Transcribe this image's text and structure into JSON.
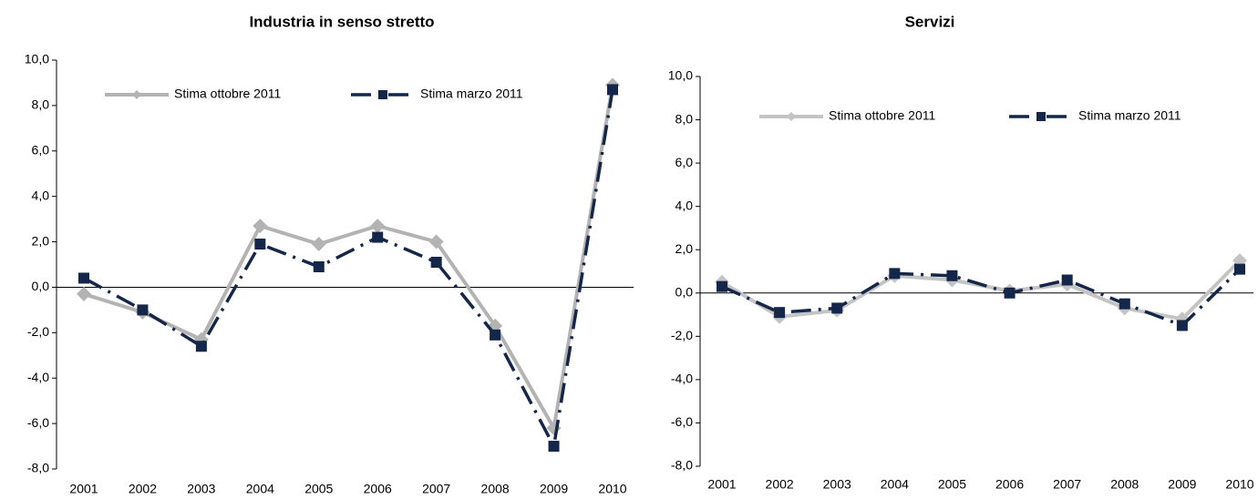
{
  "chart_data": [
    {
      "type": "line",
      "title": "Industria in senso stretto",
      "categories": [
        "2001",
        "2002",
        "2003",
        "2004",
        "2005",
        "2006",
        "2007",
        "2008",
        "2009",
        "2010"
      ],
      "series": [
        {
          "name": "Stima ottobre 2011",
          "color": "#b3b3b3",
          "values": [
            -0.3,
            -1.1,
            -2.3,
            2.7,
            1.9,
            2.7,
            2.0,
            -1.7,
            -6.2,
            8.9
          ]
        },
        {
          "name": "Stima marzo 2011",
          "color": "#14264a",
          "values": [
            0.4,
            -1.0,
            -2.6,
            1.9,
            0.9,
            2.2,
            1.1,
            -2.1,
            -7.0,
            8.7
          ]
        }
      ],
      "ylim": [
        -8,
        10
      ],
      "yticks": [
        {
          "value": -8,
          "label": "-8,0"
        },
        {
          "value": -6,
          "label": "-6,0"
        },
        {
          "value": -4,
          "label": "-4,0"
        },
        {
          "value": -2,
          "label": "-2,0"
        },
        {
          "value": 0,
          "label": "0,0"
        },
        {
          "value": 2,
          "label": "2,0"
        },
        {
          "value": 4,
          "label": "4,0"
        },
        {
          "value": 6,
          "label": "6,0"
        },
        {
          "value": 8,
          "label": "8,0"
        },
        {
          "value": 10,
          "label": "10,0"
        }
      ]
    },
    {
      "type": "line",
      "title": "Servizi",
      "categories": [
        "2001",
        "2002",
        "2003",
        "2004",
        "2005",
        "2006",
        "2007",
        "2008",
        "2009",
        "2010"
      ],
      "series": [
        {
          "name": "Stima ottobre 2011",
          "color": "#c4c4c4",
          "values": [
            0.5,
            -1.1,
            -0.8,
            0.8,
            0.6,
            0.1,
            0.4,
            -0.7,
            -1.2,
            1.5
          ]
        },
        {
          "name": "Stima marzo 2011",
          "color": "#14264a",
          "values": [
            0.3,
            -0.9,
            -0.7,
            0.9,
            0.8,
            0.0,
            0.6,
            -0.5,
            -1.5,
            1.1
          ]
        }
      ],
      "ylim": [
        -8,
        10
      ],
      "yticks": [
        {
          "value": -8,
          "label": "-8,0"
        },
        {
          "value": -6,
          "label": "-6,0"
        },
        {
          "value": -4,
          "label": "-4,0"
        },
        {
          "value": -2,
          "label": "-2,0"
        },
        {
          "value": 0,
          "label": "0,0"
        },
        {
          "value": 2,
          "label": "2,0"
        },
        {
          "value": 4,
          "label": "4,0"
        },
        {
          "value": 6,
          "label": "6,0"
        },
        {
          "value": 8,
          "label": "8,0"
        },
        {
          "value": 10,
          "label": "10,0"
        }
      ]
    }
  ]
}
